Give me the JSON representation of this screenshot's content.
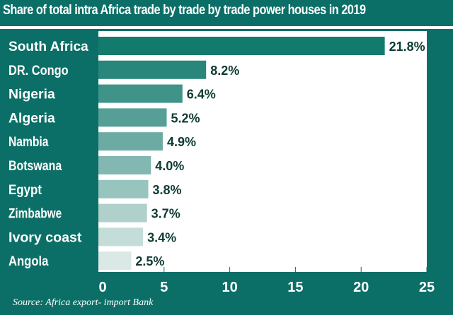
{
  "chart_data": {
    "type": "bar",
    "orientation": "horizontal",
    "title": "Share of total intra Africa trade by trade by trade power houses in 2019",
    "categories": [
      "South Africa",
      "DR. Congo",
      "Nigeria",
      "Algeria",
      "Nambia",
      "Botswana",
      "Egypt",
      "Zimbabwe",
      "Ivory coast",
      "Angola"
    ],
    "values": [
      21.8,
      8.2,
      6.4,
      5.2,
      4.9,
      4.0,
      3.8,
      3.7,
      3.4,
      2.5
    ],
    "value_labels": [
      "21.8%",
      "8.2%",
      "6.4%",
      "5.2%",
      "4.9%",
      "4.0%",
      "3.8%",
      "3.7%",
      "3.4%",
      "2.5%"
    ],
    "xlim": [
      0,
      25
    ],
    "xticks": [
      0,
      5,
      10,
      15,
      20,
      25
    ],
    "xtick_labels": [
      "0",
      "5",
      "10",
      "15",
      "20",
      "25"
    ],
    "xlabel": "",
    "ylabel": "",
    "grid": false,
    "source": "Source: Africa export- import Bank",
    "colors": {
      "background": "#0b6f67",
      "bar_dark": "#137a6e",
      "bar_light": "#dbe9e6",
      "value_text": "#0d3b33"
    }
  }
}
